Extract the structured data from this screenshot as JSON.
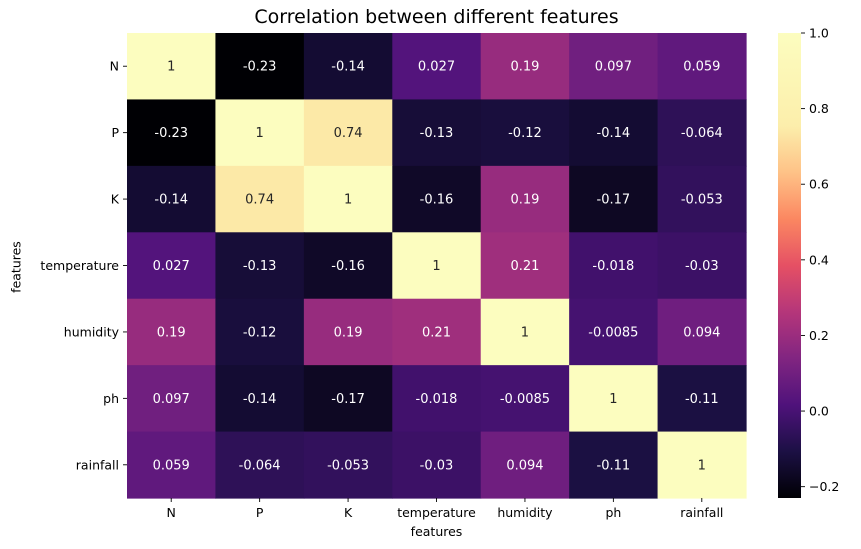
{
  "chart_data": {
    "type": "heatmap",
    "title": "Correlation between different features",
    "xlabel": "features",
    "ylabel": "features",
    "rows": [
      "N",
      "P",
      "K",
      "temperature",
      "humidity",
      "ph",
      "rainfall"
    ],
    "columns": [
      "N",
      "P",
      "K",
      "temperature",
      "humidity",
      "ph",
      "rainfall"
    ],
    "values": [
      [
        1,
        -0.23,
        -0.14,
        0.027,
        0.19,
        0.097,
        0.059
      ],
      [
        -0.23,
        1,
        0.74,
        -0.13,
        -0.12,
        -0.14,
        -0.064
      ],
      [
        -0.14,
        0.74,
        1,
        -0.16,
        0.19,
        -0.17,
        -0.053
      ],
      [
        0.027,
        -0.13,
        -0.16,
        1,
        0.21,
        -0.018,
        -0.03
      ],
      [
        0.19,
        -0.12,
        0.19,
        0.21,
        1,
        -0.0085,
        0.094
      ],
      [
        0.097,
        -0.14,
        -0.17,
        -0.018,
        -0.0085,
        1,
        -0.11
      ],
      [
        0.059,
        -0.064,
        -0.053,
        -0.03,
        0.094,
        -0.11,
        1
      ]
    ],
    "annotations": [
      [
        "1",
        "-0.23",
        "-0.14",
        "0.027",
        "0.19",
        "0.097",
        "0.059"
      ],
      [
        "-0.23",
        "1",
        "0.74",
        "-0.13",
        "-0.12",
        "-0.14",
        "-0.064"
      ],
      [
        "-0.14",
        "0.74",
        "1",
        "-0.16",
        "0.19",
        "-0.17",
        "-0.053"
      ],
      [
        "0.027",
        "-0.13",
        "-0.16",
        "1",
        "0.21",
        "-0.018",
        "-0.03"
      ],
      [
        "0.19",
        "-0.12",
        "0.19",
        "0.21",
        "1",
        "-0.0085",
        "0.094"
      ],
      [
        "0.097",
        "-0.14",
        "-0.17",
        "-0.018",
        "-0.0085",
        "1",
        "-0.11"
      ],
      [
        "0.059",
        "-0.064",
        "-0.053",
        "-0.03",
        "0.094",
        "-0.11",
        "1"
      ]
    ],
    "colormap": "magma",
    "vmin": -0.23,
    "vmax": 1.0,
    "colorbar_ticks": [
      1.0,
      0.8,
      0.6,
      0.4,
      0.2,
      0.0,
      -0.2
    ],
    "colorbar_tick_labels": [
      "1.0",
      "0.8",
      "0.6",
      "0.4",
      "0.2",
      "0.0",
      "−0.2"
    ]
  }
}
